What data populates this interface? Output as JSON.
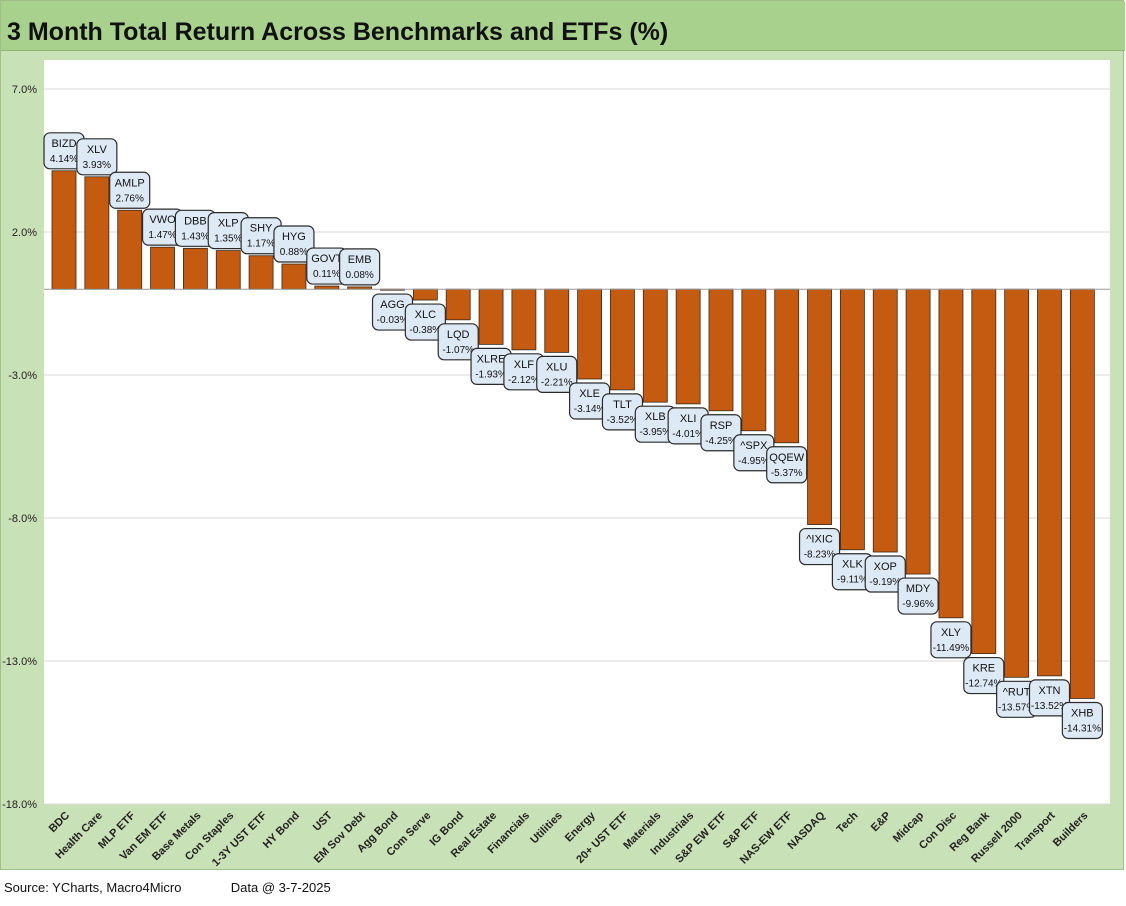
{
  "chart_data": {
    "type": "bar",
    "title": "3 Month Total Return Across Benchmarks and ETFs (%)",
    "xlabel": "",
    "ylabel": "",
    "ylim": [
      -18,
      7
    ],
    "yticks": [
      7,
      2,
      -3,
      -8,
      -13,
      -18
    ],
    "ytick_labels": [
      "7.0%",
      "2.0%",
      "-3.0%",
      "-8.0%",
      "-13.0%",
      "-18.0%"
    ],
    "bar_color": "#c55a11",
    "categories": [
      "BDC",
      "Health Care",
      "MLP ETF",
      "Van EM ETF",
      "Base Metals",
      "Con Staples",
      "1-3Y UST ETF",
      "HY Bond",
      "UST",
      "EM Sov Debt",
      "Agg Bond",
      "Com Serve",
      "IG Bond",
      "Real Estate",
      "Financials",
      "Utilities",
      "Energy",
      "20+ UST ETF",
      "Materials",
      "Industrials",
      "S&P EW ETF",
      "S&P ETF",
      "NAS-EW ETF",
      "NASDAQ",
      "Tech",
      "E&P",
      "Midcap",
      "Con Disc",
      "Reg Bank",
      "Russell 2000",
      "Transport",
      "Builders"
    ],
    "tickers": [
      "BIZD",
      "XLV",
      "AMLP",
      "VWO",
      "DBB",
      "XLP",
      "SHY",
      "HYG",
      "GOVT",
      "EMB",
      "AGG",
      "XLC",
      "LQD",
      "XLRE",
      "XLF",
      "XLU",
      "XLE",
      "TLT",
      "XLB",
      "XLI",
      "RSP",
      "^SPX",
      "QQEW",
      "^IXIC",
      "XLK",
      "XOP",
      "MDY",
      "XLY",
      "KRE",
      "^RUT",
      "XTN",
      "XHB"
    ],
    "values": [
      4.14,
      3.93,
      2.76,
      1.47,
      1.43,
      1.35,
      1.17,
      0.88,
      0.11,
      0.08,
      -0.03,
      -0.38,
      -1.07,
      -1.93,
      -2.12,
      -2.21,
      -3.14,
      -3.52,
      -3.95,
      -4.01,
      -4.25,
      -4.95,
      -5.37,
      -8.23,
      -9.11,
      -9.19,
      -9.96,
      -11.49,
      -12.74,
      -13.57,
      -13.52,
      -14.31
    ],
    "value_labels": [
      "4.14%",
      "3.93%",
      "2.76%",
      "1.47%",
      "1.43%",
      "1.35%",
      "1.17%",
      "0.88%",
      "0.11%",
      "0.08%",
      "-0.03%",
      "-0.38%",
      "-1.07%",
      "-1.93%",
      "-2.12%",
      "-2.21%",
      "-3.14%",
      "-3.52%",
      "-3.95%",
      "-4.01%",
      "-4.25%",
      "-4.95%",
      "-5.37%",
      "-8.23%",
      "-9.11%",
      "-9.19%",
      "-9.96%",
      "-11.49%",
      "-12.74%",
      "-13.57%",
      "-13.52%",
      "-14.31%"
    ]
  },
  "footer": {
    "source": "Source: YCharts, Macro4Micro",
    "data_date": "Data @ 3-7-2025"
  }
}
